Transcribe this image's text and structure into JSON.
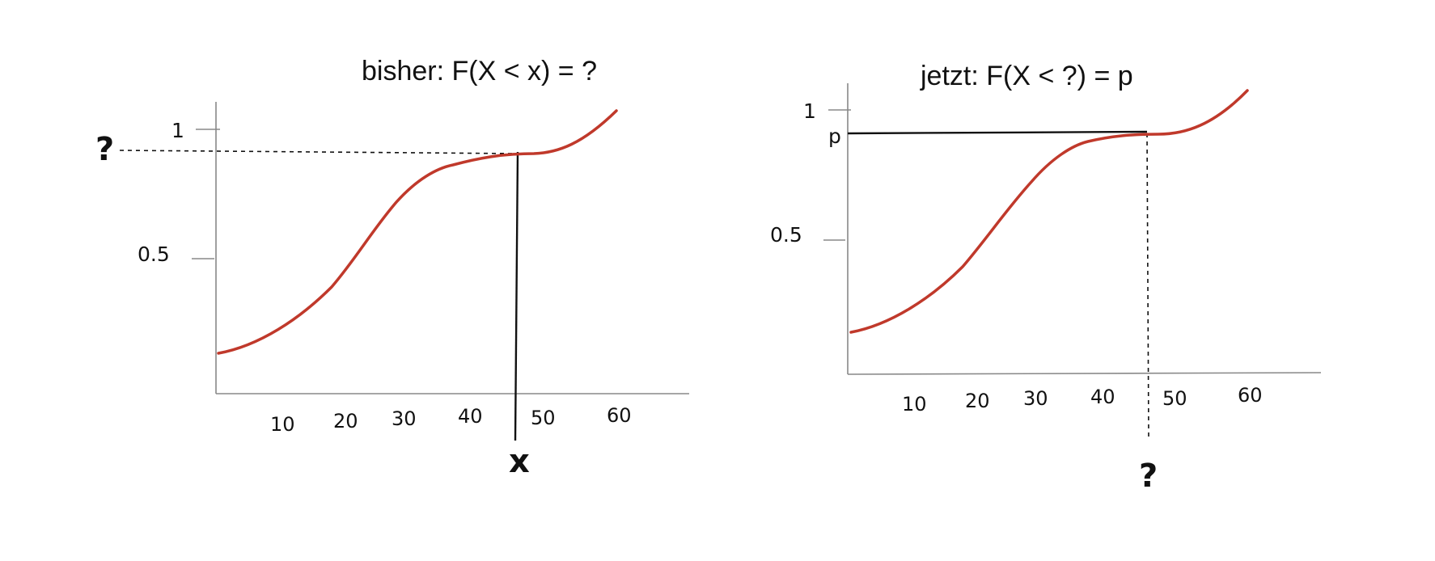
{
  "left": {
    "title": "bisher: F(X < x) = ?",
    "y_ticks": [
      "1",
      "0.5"
    ],
    "x_ticks": [
      "10",
      "20",
      "30",
      "40",
      "50",
      "60"
    ],
    "y_marker": "?",
    "x_marker": "x"
  },
  "right": {
    "title": "jetzt: F(X < ?) = p",
    "y_ticks": [
      "1",
      "0.5"
    ],
    "p_label": "p",
    "x_ticks": [
      "10",
      "20",
      "30",
      "40",
      "50",
      "60"
    ],
    "x_marker": "?"
  },
  "colors": {
    "curve": "#c0392b",
    "axis": "#888888",
    "ink": "#111111"
  }
}
